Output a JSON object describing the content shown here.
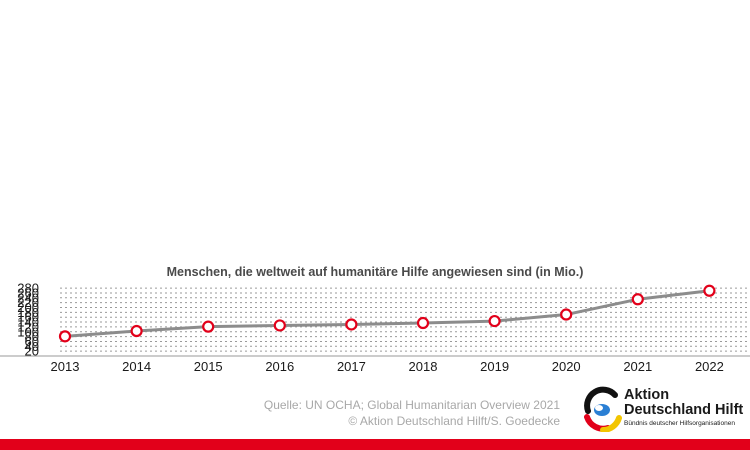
{
  "chart_data": {
    "type": "line",
    "x": [
      "2013",
      "2014",
      "2015",
      "2016",
      "2017",
      "2018",
      "2019",
      "2020",
      "2021",
      "2022"
    ],
    "series": [
      {
        "values": [
          81,
          103,
          121,
          126,
          130,
          136,
          144,
          171,
          234,
          269
        ]
      }
    ],
    "yticks": [
      20,
      40,
      60,
      80,
      100,
      120,
      140,
      160,
      180,
      200,
      220,
      240,
      260,
      280
    ],
    "ylim": [
      0,
      280
    ],
    "annotation": "Menschen, die weltweit auf humanitäre Hilfe angewiesen sind (in Mio.)",
    "grid": true,
    "colors": {
      "line": "#8c8c8c",
      "marker": "#e2001a",
      "grid": "#9a9a9a",
      "axis": "#9a9a9a"
    }
  },
  "source": {
    "line1": "Quelle: UN OCHA; Global Humanitarian Overview 2021",
    "line2": "© Aktion Deutschland Hilft/S. Goedecke"
  },
  "logo": {
    "line1": "Aktion",
    "line2": "Deutschland Hilft",
    "tagline": "Bündnis deutscher Hilfsorganisationen"
  },
  "colors": {
    "brand_red": "#e2001a",
    "source_text": "#a8a8a8"
  }
}
